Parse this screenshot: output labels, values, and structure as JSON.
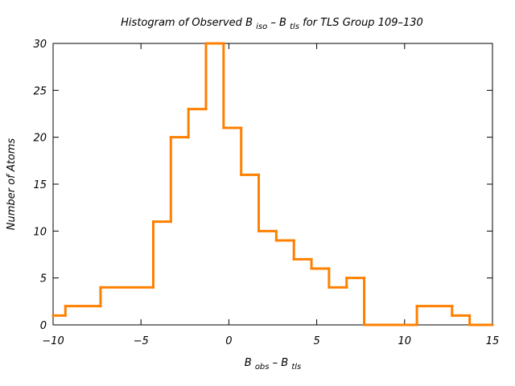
{
  "chart_data": {
    "type": "histogram",
    "title": "Histogram of Observed B iso – B tls for TLS Group 109–130",
    "title_parts": {
      "pre": "Histogram of Observed B ",
      "sub1": "iso",
      "mid": " – B ",
      "sub2": "tls",
      "post": " for TLS Group 109–130"
    },
    "xlabel_parts": {
      "b1": "B ",
      "sub1": "obs",
      "mid": " – B ",
      "sub2": "tls"
    },
    "ylabel": "Number of Atoms",
    "xlim": [
      -10,
      15
    ],
    "ylim": [
      0,
      30
    ],
    "x_ticks": [
      -10,
      -5,
      0,
      5,
      10,
      15
    ],
    "x_tick_labels": [
      "−10",
      "−5",
      "0",
      "5",
      "10",
      "15"
    ],
    "y_ticks": [
      0,
      5,
      10,
      15,
      20,
      25,
      30
    ],
    "y_tick_labels": [
      "0",
      "5",
      "10",
      "15",
      "20",
      "25",
      "30"
    ],
    "color": "#ff8000",
    "bins": [
      {
        "x0": -10,
        "x1": -9.3,
        "count": 1
      },
      {
        "x0": -9.3,
        "x1": -7.3,
        "count": 2
      },
      {
        "x0": -7.3,
        "x1": -4.3,
        "count": 4
      },
      {
        "x0": -4.3,
        "x1": -3.3,
        "count": 11
      },
      {
        "x0": -3.3,
        "x1": -2.3,
        "count": 20
      },
      {
        "x0": -2.3,
        "x1": -1.3,
        "count": 23
      },
      {
        "x0": -1.3,
        "x1": -0.3,
        "count": 30
      },
      {
        "x0": -0.3,
        "x1": 0.7,
        "count": 21
      },
      {
        "x0": 0.7,
        "x1": 1.7,
        "count": 16
      },
      {
        "x0": 1.7,
        "x1": 2.7,
        "count": 10
      },
      {
        "x0": 2.7,
        "x1": 3.7,
        "count": 9
      },
      {
        "x0": 3.7,
        "x1": 4.7,
        "count": 7
      },
      {
        "x0": 4.7,
        "x1": 5.7,
        "count": 6
      },
      {
        "x0": 5.7,
        "x1": 6.7,
        "count": 4
      },
      {
        "x0": 6.7,
        "x1": 7.7,
        "count": 5
      },
      {
        "x0": 7.7,
        "x1": 10.7,
        "count": 0
      },
      {
        "x0": 10.7,
        "x1": 12.7,
        "count": 2
      },
      {
        "x0": 12.7,
        "x1": 13.7,
        "count": 1
      },
      {
        "x0": 13.7,
        "x1": 15,
        "count": 0
      }
    ]
  }
}
